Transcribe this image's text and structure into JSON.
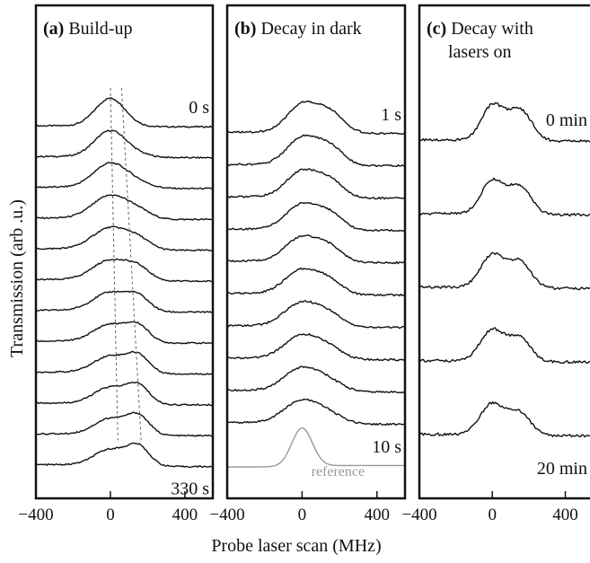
{
  "chart_data": {
    "type": "line",
    "xlabel": "Probe laser scan (MHz)",
    "ylabel": "Transmission (arb .u.)",
    "xlim": [
      -400,
      550
    ],
    "xticks": [
      -400,
      0,
      400
    ],
    "panels": [
      {
        "id": "a",
        "title_letter": "(a)",
        "title_text": "Build-up",
        "title_text2": "",
        "labels": [
          {
            "text": "0 s",
            "trace": 0
          },
          {
            "text": "330 s",
            "trace": 11
          }
        ],
        "series": [
          {
            "h": [
              0.78,
              0.0
            ],
            "w": [
              80,
              100
            ],
            "base": 0.08,
            "tail": 0.05
          },
          {
            "h": [
              0.73,
              0.06
            ],
            "w": [
              85,
              80
            ],
            "base": 0.09,
            "tail": 0.05
          },
          {
            "h": [
              0.68,
              0.12
            ],
            "w": [
              90,
              75
            ],
            "base": 0.1,
            "tail": 0.05
          },
          {
            "h": [
              0.64,
              0.19
            ],
            "w": [
              95,
              70
            ],
            "base": 0.1,
            "tail": 0.05
          },
          {
            "h": [
              0.6,
              0.26
            ],
            "w": [
              95,
              68
            ],
            "base": 0.11,
            "tail": 0.05
          },
          {
            "h": [
              0.56,
              0.32
            ],
            "w": [
              95,
              65
            ],
            "base": 0.11,
            "tail": 0.05
          },
          {
            "h": [
              0.52,
              0.38
            ],
            "w": [
              92,
              62
            ],
            "base": 0.12,
            "tail": 0.05
          },
          {
            "h": [
              0.49,
              0.43
            ],
            "w": [
              90,
              60
            ],
            "base": 0.12,
            "tail": 0.05
          },
          {
            "h": [
              0.47,
              0.47
            ],
            "w": [
              88,
              60
            ],
            "base": 0.12,
            "tail": 0.05
          },
          {
            "h": [
              0.46,
              0.5
            ],
            "w": [
              86,
              60
            ],
            "base": 0.12,
            "tail": 0.05
          },
          {
            "h": [
              0.45,
              0.52
            ],
            "w": [
              85,
              60
            ],
            "base": 0.12,
            "tail": 0.05
          },
          {
            "h": [
              0.45,
              0.53
            ],
            "w": [
              85,
              60
            ],
            "base": 0.12,
            "tail": 0.05
          }
        ],
        "reference": null,
        "guides": [
          {
            "x_top": 0,
            "x_bottom": 40
          },
          {
            "x_top": 60,
            "x_bottom": 165
          }
        ]
      },
      {
        "id": "b",
        "title_letter": "(b)",
        "title_text": "Decay in dark",
        "title_text2": "",
        "labels": [
          {
            "text": "1 s",
            "trace": 0
          },
          {
            "text": "10 s",
            "trace": 9
          }
        ],
        "series": [
          {
            "h": [
              0.62,
              0.44
            ],
            "w": [
              80,
              75
            ],
            "base": 0.1,
            "tail": 0.07
          },
          {
            "h": [
              0.6,
              0.4
            ],
            "w": [
              82,
              72
            ],
            "base": 0.1,
            "tail": 0.07
          },
          {
            "h": [
              0.58,
              0.36
            ],
            "w": [
              84,
              70
            ],
            "base": 0.1,
            "tail": 0.07
          },
          {
            "h": [
              0.56,
              0.33
            ],
            "w": [
              86,
              70
            ],
            "base": 0.1,
            "tail": 0.07
          },
          {
            "h": [
              0.55,
              0.3
            ],
            "w": [
              88,
              70
            ],
            "base": 0.11,
            "tail": 0.07
          },
          {
            "h": [
              0.54,
              0.27
            ],
            "w": [
              90,
              70
            ],
            "base": 0.11,
            "tail": 0.07
          },
          {
            "h": [
              0.53,
              0.24
            ],
            "w": [
              92,
              72
            ],
            "base": 0.11,
            "tail": 0.07
          },
          {
            "h": [
              0.52,
              0.21
            ],
            "w": [
              92,
              74
            ],
            "base": 0.11,
            "tail": 0.07
          },
          {
            "h": [
              0.51,
              0.19
            ],
            "w": [
              94,
              76
            ],
            "base": 0.11,
            "tail": 0.07
          },
          {
            "h": [
              0.5,
              0.17
            ],
            "w": [
              96,
              78
            ],
            "base": 0.11,
            "tail": 0.07
          }
        ],
        "reference": {
          "text": "reference",
          "h": [
            0.85,
            0.0
          ],
          "w": [
            55,
            100
          ],
          "base": 0.0,
          "tail": 0.08
        },
        "guides": []
      },
      {
        "id": "c",
        "title_letter": "(c)",
        "title_text": "Decay with",
        "title_text2": "lasers on",
        "labels": [
          {
            "text": "0 min",
            "trace": 0
          },
          {
            "text": "20 min",
            "trace": 4
          }
        ],
        "series": [
          {
            "h": [
              0.55,
              0.5
            ],
            "w": [
              60,
              65
            ],
            "base": 0.1,
            "tail": 0.1
          },
          {
            "h": [
              0.53,
              0.45
            ],
            "w": [
              62,
              62
            ],
            "base": 0.1,
            "tail": 0.1
          },
          {
            "h": [
              0.52,
              0.42
            ],
            "w": [
              64,
              62
            ],
            "base": 0.1,
            "tail": 0.1
          },
          {
            "h": [
              0.5,
              0.38
            ],
            "w": [
              66,
              60
            ],
            "base": 0.1,
            "tail": 0.1
          },
          {
            "h": [
              0.5,
              0.36
            ],
            "w": [
              66,
              60
            ],
            "base": 0.1,
            "tail": 0.1
          }
        ],
        "reference": null,
        "guides": []
      }
    ]
  }
}
